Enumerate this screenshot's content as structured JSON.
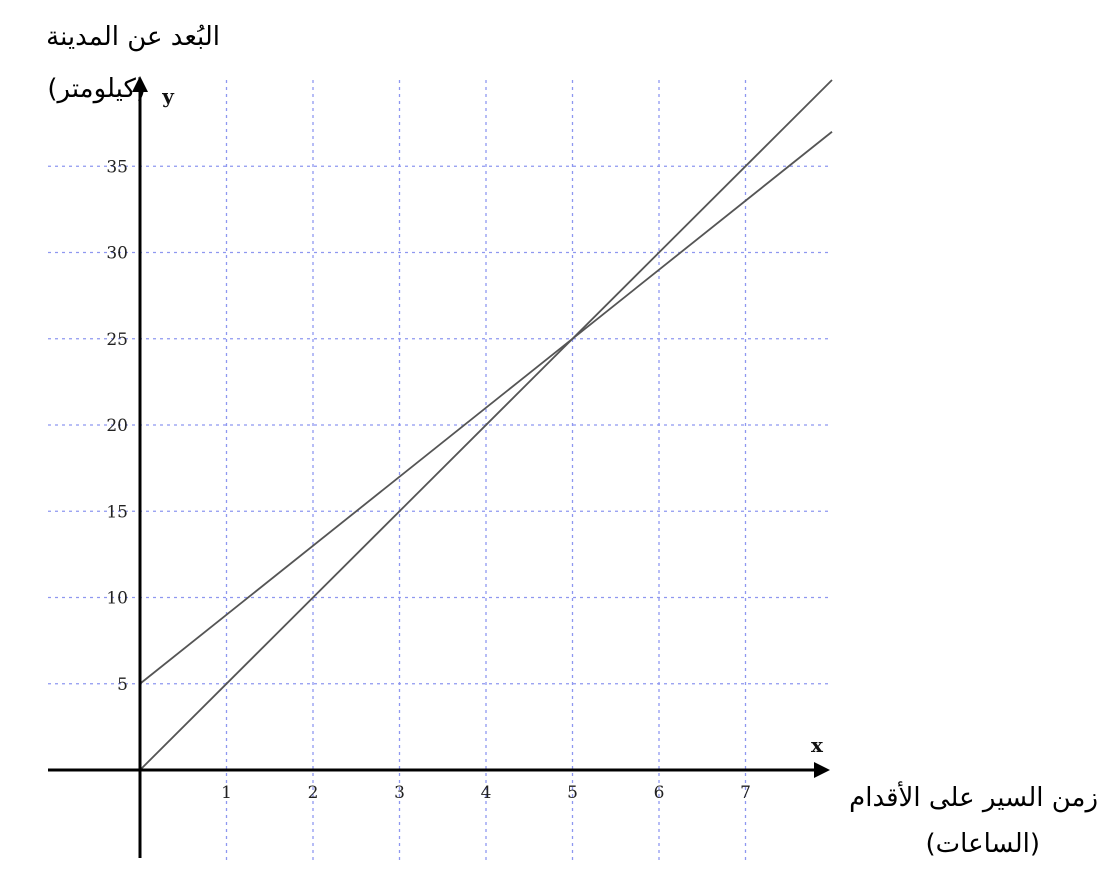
{
  "chart_data": {
    "type": "line",
    "ylabel_line1": "البُعد عن المدينة",
    "ylabel_line2": "(كيلومتر)",
    "xlabel_line1": "زمن السير على الأقدام",
    "xlabel_line2": "(الساعات)",
    "x_axis_letter": "x",
    "y_axis_letter": "y",
    "xlim": [
      -1,
      8
    ],
    "ylim": [
      -5,
      40
    ],
    "x_ticks": [
      1,
      2,
      3,
      4,
      5,
      6,
      7
    ],
    "y_ticks": [
      5,
      10,
      15,
      20,
      25,
      30,
      35
    ],
    "grid": true,
    "series": [
      {
        "x": [
          0,
          8
        ],
        "y": [
          0,
          40
        ],
        "color": "#555555"
      },
      {
        "x": [
          0,
          8
        ],
        "y": [
          5,
          37
        ],
        "color": "#555555"
      }
    ]
  }
}
